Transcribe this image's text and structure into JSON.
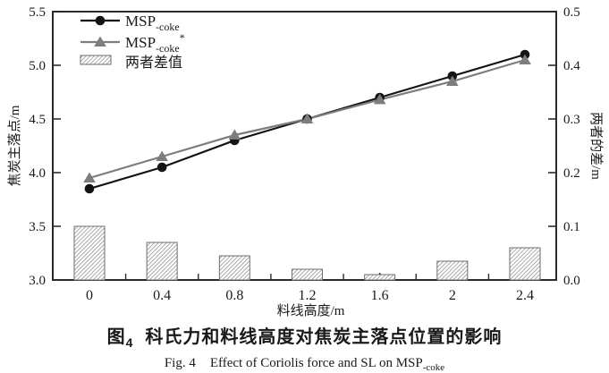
{
  "page": {
    "background": "#ffffff"
  },
  "figure": {
    "caption_zh": {
      "prefix": "图",
      "prefix_sub": "4",
      "text": "科氏力和料线高度对焦炭主落点位置的影响"
    },
    "caption_en": {
      "fig": "Fig. 4",
      "text": "Effect of Coriolis force and SL on MSP",
      "sub": "-coke"
    }
  },
  "chart_data": {
    "type": "line+bar",
    "x": [
      0,
      0.4,
      0.8,
      1.2,
      1.6,
      2.0,
      2.4
    ],
    "x_tick_labels": [
      "0",
      "0.4",
      "0.8",
      "1.2",
      "1.6",
      "2",
      "2.4"
    ],
    "xlabel": "料线高度/m",
    "left_axis": {
      "label": "焦炭主落点/m",
      "min": 3.0,
      "max": 5.5,
      "ticks": [
        5.5,
        5.0,
        4.5,
        4.0,
        3.5,
        3.0
      ],
      "tick_labels": [
        "5.5",
        "5.0",
        "4.5",
        "4.0",
        "3.5",
        "3.0"
      ]
    },
    "right_axis": {
      "label": "两者的差/m",
      "min": 0.0,
      "max": 0.5,
      "ticks": [
        0.5,
        0.4,
        0.3,
        0.2,
        0.1,
        0.0
      ],
      "tick_labels": [
        "0.5",
        "0.4",
        "0.3",
        "0.2",
        "0.1",
        "0.0"
      ]
    },
    "axis_color": "#2b2b2b",
    "grid": false,
    "legend_position": "top-left-inside",
    "series": [
      {
        "id": "msp-coke",
        "type": "line",
        "marker": "circle",
        "color": "#141414",
        "axis": "left",
        "legend": {
          "base": "MSP",
          "sub": "-coke",
          "sup": ""
        },
        "values": [
          3.85,
          4.05,
          4.3,
          4.5,
          4.7,
          4.9,
          5.1
        ]
      },
      {
        "id": "msp-coke-star",
        "type": "line",
        "marker": "triangle",
        "color": "#7d7d7d",
        "axis": "left",
        "legend": {
          "base": "MSP",
          "sub": "-coke",
          "sup": "*"
        },
        "values": [
          3.95,
          4.15,
          4.35,
          4.5,
          4.68,
          4.85,
          5.05
        ]
      },
      {
        "id": "difference",
        "type": "bar",
        "axis": "right",
        "hatch_color": "#8f8f8f",
        "edge_color": "#6e6e6e",
        "legend": {
          "label": "两者差值"
        },
        "values": [
          0.1,
          0.07,
          0.045,
          0.02,
          0.01,
          0.035,
          0.06
        ]
      }
    ]
  }
}
